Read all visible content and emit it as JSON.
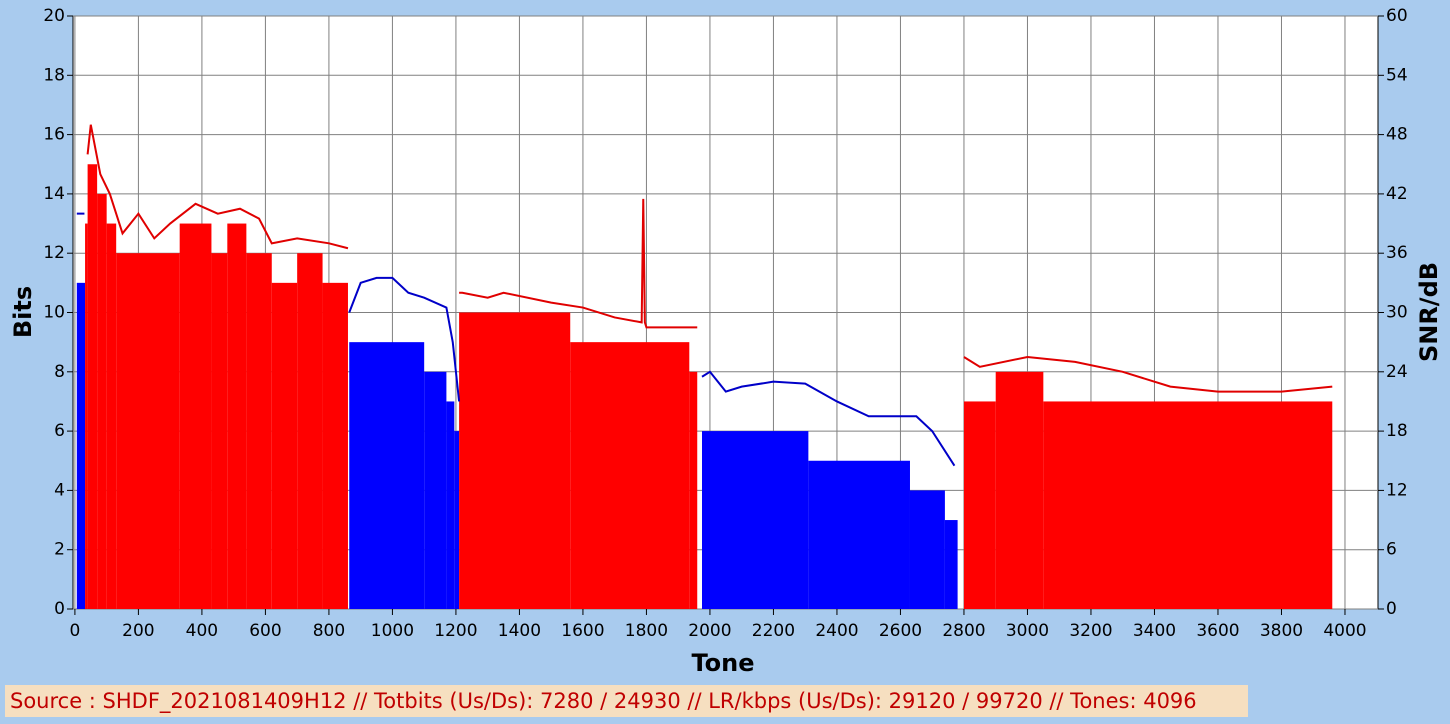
{
  "chart_data": {
    "type": "bitloading",
    "x_label": "Tone",
    "y_label": "Bits",
    "y2_label": "SNR/dB",
    "footer": "Source : SHDF_2021081409H12 // Totbits (Us/Ds): 7280 / 24930 // LR/kbps (Us/Ds): 29120 / 99720 // Tones: 4096",
    "xlim": [
      -6,
      4104
    ],
    "xticks": [
      0,
      200,
      400,
      600,
      800,
      1000,
      1200,
      1400,
      1600,
      1800,
      2000,
      2200,
      2400,
      2600,
      2800,
      3000,
      3200,
      3400,
      3600,
      3800,
      4000
    ],
    "ylim": [
      0,
      20
    ],
    "yticks": [
      0,
      2,
      4,
      6,
      8,
      10,
      12,
      14,
      16,
      18,
      20
    ],
    "y2lim": [
      0,
      60
    ],
    "y2ticks": [
      0,
      6,
      12,
      18,
      24,
      30,
      36,
      42,
      48,
      54,
      60
    ],
    "grid": true,
    "series": [
      {
        "kind": "bits",
        "color": "#0000ff",
        "x": [
          6,
          32,
          864,
          1100,
          1170,
          1195,
          1210,
          1975,
          2310,
          2630,
          2740,
          2780
        ],
        "values": [
          11,
          null,
          9,
          8,
          7,
          6,
          null,
          6,
          5,
          4,
          3,
          null
        ]
      },
      {
        "kind": "bits",
        "color": "#ff0000",
        "x": [
          32,
          40,
          70,
          100,
          130,
          330,
          430,
          480,
          540,
          620,
          700,
          780,
          860,
          1210,
          1560,
          1935,
          1960,
          2800,
          2900,
          3050,
          3960
        ],
        "values": [
          13,
          15,
          14,
          13,
          12,
          13,
          12,
          13,
          12,
          11,
          12,
          11,
          null,
          10,
          9,
          8,
          null,
          7,
          8,
          7,
          null
        ]
      },
      {
        "kind": "snr",
        "axis": "y2",
        "color": "#0000c8",
        "x": [
          6,
          30,
          31,
          864,
          900,
          950,
          1000,
          1050,
          1100,
          1170,
          1190,
          1210,
          1211,
          1975,
          2000,
          2050,
          2100,
          2200,
          2300,
          2400,
          2500,
          2600,
          2650,
          2700,
          2770
        ],
        "values": [
          40,
          40,
          null,
          30,
          33,
          33.5,
          33.5,
          32,
          31.5,
          30.5,
          27,
          21,
          null,
          23.5,
          24,
          22,
          22.5,
          23,
          22.8,
          21,
          19.5,
          19.5,
          19.5,
          18,
          14.5
        ]
      },
      {
        "kind": "snr",
        "axis": "y2",
        "color": "#e00000",
        "x": [
          40,
          50,
          80,
          110,
          150,
          200,
          250,
          300,
          380,
          450,
          520,
          580,
          620,
          700,
          800,
          860,
          861,
          1210,
          1220,
          1300,
          1350,
          1500,
          1600,
          1700,
          1785,
          1790,
          1795,
          1800,
          1960,
          1961,
          2800,
          2850,
          3000,
          3150,
          3300,
          3450,
          3600,
          3800,
          3960
        ],
        "values": [
          46,
          49,
          44,
          42,
          38,
          40,
          37.5,
          39,
          41,
          40,
          40.5,
          39.5,
          37,
          37.5,
          37,
          36.5,
          null,
          32,
          32,
          31.5,
          32,
          31,
          30.5,
          29.5,
          29,
          41.5,
          29,
          28.5,
          28.5,
          null,
          25.5,
          24.5,
          25.5,
          25,
          24,
          22.5,
          22,
          22,
          22.5
        ]
      }
    ]
  }
}
